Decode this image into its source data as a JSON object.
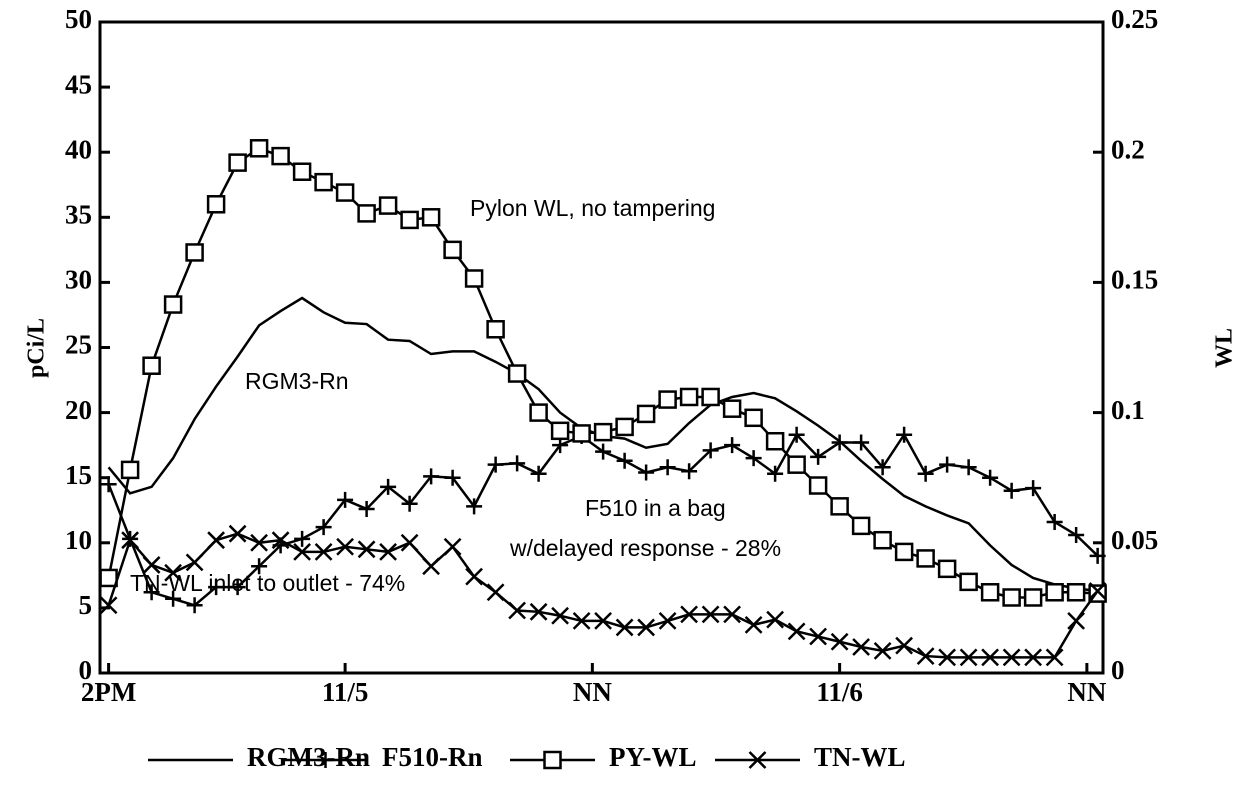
{
  "chart_data": {
    "type": "line",
    "y_label": "pCi/L",
    "y2_label": "WL",
    "annotations": [
      "Pylon WL,  no tampering",
      "RGM3-Rn",
      "F510 in a bag",
      "w/delayed response - 28%",
      "TN-WL inlet to outlet  - 74%"
    ],
    "x": [
      0,
      1,
      2,
      3,
      4,
      5,
      6,
      7,
      8,
      9,
      10,
      11,
      12,
      13,
      14,
      15,
      16,
      17,
      18,
      19,
      20,
      21,
      22,
      23,
      24,
      25,
      26,
      27,
      28,
      29,
      30,
      31,
      32,
      33,
      34,
      35,
      36,
      37,
      38,
      39,
      40,
      41,
      42,
      43,
      44,
      45,
      46
    ],
    "xlim": [
      -0.4,
      46.25
    ],
    "xticks": [
      {
        "value": 0,
        "label": "2PM"
      },
      {
        "value": 11,
        "label": "11/5"
      },
      {
        "value": 22.5,
        "label": "NN"
      },
      {
        "value": 34,
        "label": "11/6"
      },
      {
        "value": 45.5,
        "label": "NN"
      }
    ],
    "ylim": [
      0,
      50
    ],
    "yticks": [
      0,
      5,
      10,
      15,
      20,
      25,
      30,
      35,
      40,
      45,
      50
    ],
    "y2lim": [
      0,
      0.25
    ],
    "y2ticks": [
      0,
      0.05,
      0.1,
      0.15,
      0.2,
      0.25
    ],
    "series": [
      {
        "name": "RGM3-Rn",
        "color": "#000000",
        "marker": "none",
        "values": [
          15.8,
          13.8,
          14.3,
          16.5,
          19.5,
          22,
          24.3,
          26.7,
          27.8,
          28.8,
          27.7,
          26.9,
          26.8,
          25.6,
          25.5,
          24.5,
          24.7,
          24.7,
          23.9,
          23,
          21.8,
          20,
          18.8,
          18.2,
          18,
          17.3,
          17.6,
          19.2,
          20.6,
          21.2,
          21.5,
          21.1,
          20.1,
          19,
          17.8,
          16.3,
          14.9,
          13.6,
          12.8,
          12.1,
          11.5,
          9.8,
          8.3,
          7.3,
          6.8,
          6.5,
          6.3
        ]
      },
      {
        "name": "F510-Rn",
        "color": "#000000",
        "marker": "plus",
        "values": [
          14.5,
          10.3,
          6.2,
          5.7,
          5.2,
          6.6,
          6.6,
          8.2,
          9.8,
          10.3,
          11.2,
          13.3,
          12.6,
          14.3,
          13,
          15.1,
          15,
          12.8,
          16,
          16.1,
          15.3,
          17.5,
          18.2,
          17,
          16.3,
          15.4,
          15.8,
          15.5,
          17.1,
          17.5,
          16.5,
          15.3,
          18.3,
          16.6,
          17.7,
          17.7,
          15.8,
          18.3,
          15.3,
          16,
          15.8,
          15,
          14,
          14.2,
          11.6,
          10.6,
          9
        ]
      },
      {
        "name": "PY-WL",
        "color": "#000000",
        "marker": "square",
        "axis": "y2",
        "values": [
          0.0365,
          0.078,
          0.118,
          0.1415,
          0.1615,
          0.18,
          0.196,
          0.2015,
          0.1985,
          0.1925,
          0.1885,
          0.1845,
          0.1765,
          0.1795,
          0.174,
          0.175,
          0.1625,
          0.1515,
          0.132,
          0.115,
          0.1,
          0.093,
          0.092,
          0.0925,
          0.0945,
          0.0995,
          0.105,
          0.106,
          0.106,
          0.1015,
          0.098,
          0.089,
          0.08,
          0.072,
          0.064,
          0.0565,
          0.051,
          0.0465,
          0.044,
          0.04,
          0.035,
          0.031,
          0.029,
          0.029,
          0.031,
          0.031,
          0.0305
        ]
      },
      {
        "name": "TN-WL",
        "color": "#000000",
        "marker": "x",
        "axis": "y2",
        "values": [
          0.026,
          0.051,
          0.0415,
          0.0385,
          0.0425,
          0.051,
          0.0535,
          0.05,
          0.051,
          0.0465,
          0.0465,
          0.0485,
          0.0475,
          0.0465,
          0.05,
          0.041,
          0.0485,
          0.037,
          0.031,
          0.024,
          0.0235,
          0.022,
          0.02,
          0.02,
          0.0175,
          0.0175,
          0.02,
          0.0225,
          0.0225,
          0.0225,
          0.0185,
          0.0205,
          0.016,
          0.014,
          0.012,
          0.01,
          0.0085,
          0.0105,
          0.0065,
          0.006,
          0.006,
          0.006,
          0.006,
          0.006,
          0.006,
          0.02,
          0.0315
        ]
      }
    ]
  }
}
